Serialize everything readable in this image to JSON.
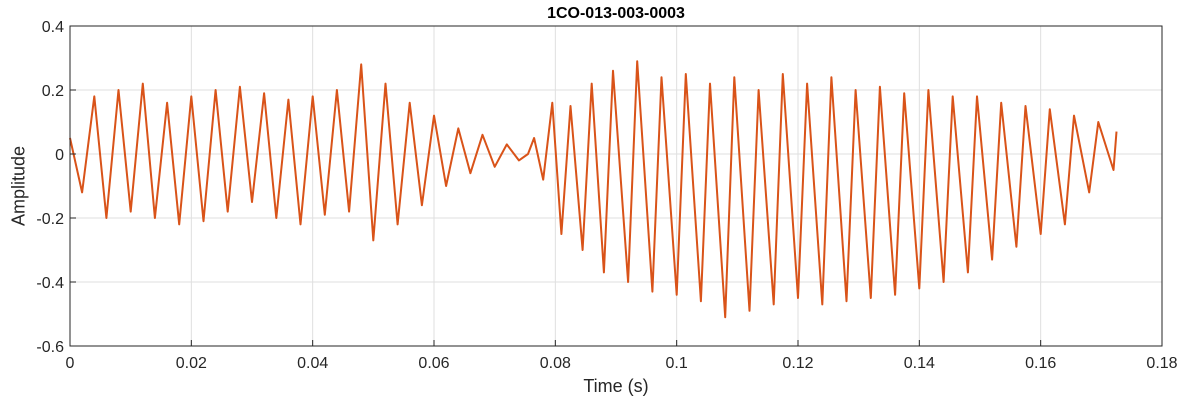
{
  "chart_data": {
    "type": "line",
    "title": "1CO-013-003-0003",
    "xlabel": "Time (s)",
    "ylabel": "Amplitude",
    "xlim": [
      0,
      0.18
    ],
    "ylim": [
      -0.6,
      0.4
    ],
    "x_ticks": [
      0,
      0.02,
      0.04,
      0.06,
      0.08,
      0.1,
      0.12,
      0.14,
      0.16,
      0.18
    ],
    "x_tick_labels": [
      "0",
      "0.02",
      "0.04",
      "0.06",
      "0.08",
      "0.1",
      "0.12",
      "0.14",
      "0.16",
      "0.18"
    ],
    "y_ticks": [
      -0.6,
      -0.4,
      -0.2,
      0,
      0.2,
      0.4
    ],
    "y_tick_labels": [
      "-0.6",
      "-0.4",
      "-0.2",
      "0",
      "0.2",
      "0.4"
    ],
    "grid": true,
    "series": [
      {
        "color": "#D95319",
        "x": [
          0,
          0.002,
          0.004,
          0.006,
          0.008,
          0.01,
          0.012,
          0.014,
          0.016,
          0.018,
          0.02,
          0.022,
          0.024,
          0.026,
          0.028,
          0.03,
          0.032,
          0.034,
          0.036,
          0.038,
          0.04,
          0.042,
          0.044,
          0.046,
          0.048,
          0.05,
          0.052,
          0.054,
          0.056,
          0.058,
          0.06,
          0.062,
          0.064,
          0.066,
          0.068,
          0.07,
          0.072,
          0.074,
          0.0755,
          0.0765,
          0.078,
          0.0795,
          0.081,
          0.0825,
          0.0845,
          0.086,
          0.088,
          0.0895,
          0.092,
          0.0935,
          0.096,
          0.0975,
          0.1,
          0.1015,
          0.104,
          0.1055,
          0.108,
          0.1095,
          0.112,
          0.1135,
          0.116,
          0.1175,
          0.12,
          0.1215,
          0.124,
          0.1255,
          0.128,
          0.1295,
          0.132,
          0.1335,
          0.136,
          0.1375,
          0.14,
          0.1415,
          0.144,
          0.1455,
          0.148,
          0.1495,
          0.152,
          0.1535,
          0.156,
          0.1575,
          0.16,
          0.1615,
          0.164,
          0.1655,
          0.168,
          0.1695,
          0.172,
          0.1725
        ],
        "y": [
          0.05,
          -0.12,
          0.18,
          -0.2,
          0.2,
          -0.18,
          0.22,
          -0.2,
          0.16,
          -0.22,
          0.18,
          -0.21,
          0.2,
          -0.18,
          0.21,
          -0.15,
          0.19,
          -0.2,
          0.17,
          -0.22,
          0.18,
          -0.19,
          0.2,
          -0.18,
          0.28,
          -0.27,
          0.22,
          -0.22,
          0.16,
          -0.16,
          0.12,
          -0.1,
          0.08,
          -0.06,
          0.06,
          -0.04,
          0.03,
          -0.02,
          0.0,
          0.05,
          -0.08,
          0.16,
          -0.25,
          0.15,
          -0.3,
          0.22,
          -0.37,
          0.26,
          -0.4,
          0.29,
          -0.43,
          0.24,
          -0.44,
          0.25,
          -0.46,
          0.22,
          -0.51,
          0.24,
          -0.49,
          0.2,
          -0.47,
          0.25,
          -0.45,
          0.22,
          -0.47,
          0.24,
          -0.46,
          0.2,
          -0.45,
          0.21,
          -0.44,
          0.19,
          -0.42,
          0.2,
          -0.4,
          0.18,
          -0.37,
          0.18,
          -0.33,
          0.16,
          -0.29,
          0.15,
          -0.25,
          0.14,
          -0.22,
          0.12,
          -0.12,
          0.1,
          -0.05,
          0.07
        ]
      }
    ]
  }
}
